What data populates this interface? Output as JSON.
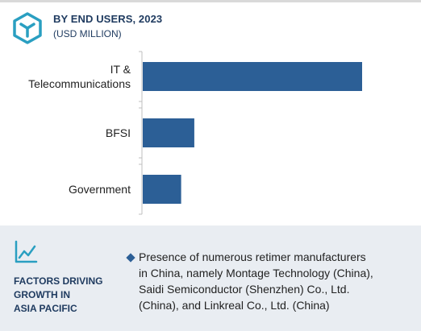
{
  "header": {
    "title": "BY  END USERS, 2023",
    "unit": "(USD MILLION)"
  },
  "icons": {
    "header_icon": "cube-hexagon-icon",
    "factors_icon": "trend-line-icon"
  },
  "colors": {
    "bar": "#2c5f96",
    "title": "#1e3a5f",
    "icon": "#2a9fc1",
    "footer_bg": "#e9edf2"
  },
  "chart_data": {
    "type": "bar",
    "orientation": "horizontal",
    "title": "BY  END USERS, 2023",
    "subtitle": "(USD MILLION)",
    "categories": [
      [
        "IT &",
        "Telecommunications"
      ],
      [
        "BFSI"
      ],
      [
        "Government"
      ]
    ],
    "values": [
      100,
      23.5,
      17.5
    ],
    "xlim": [
      0,
      100
    ],
    "grid": false,
    "legend": "none",
    "value_labels": false
  },
  "footer": {
    "factors_label_lines": [
      "FACTORS DRIVING",
      "GROWTH IN",
      "ASIA PACIFIC"
    ],
    "bullet_lines": [
      "Presence of numerous retimer manufacturers",
      "in China, namely Montage Technology (China),",
      "Saidi Semiconductor (Shenzhen) Co., Ltd.",
      "(China), and Linkreal Co., Ltd. (China)"
    ]
  }
}
